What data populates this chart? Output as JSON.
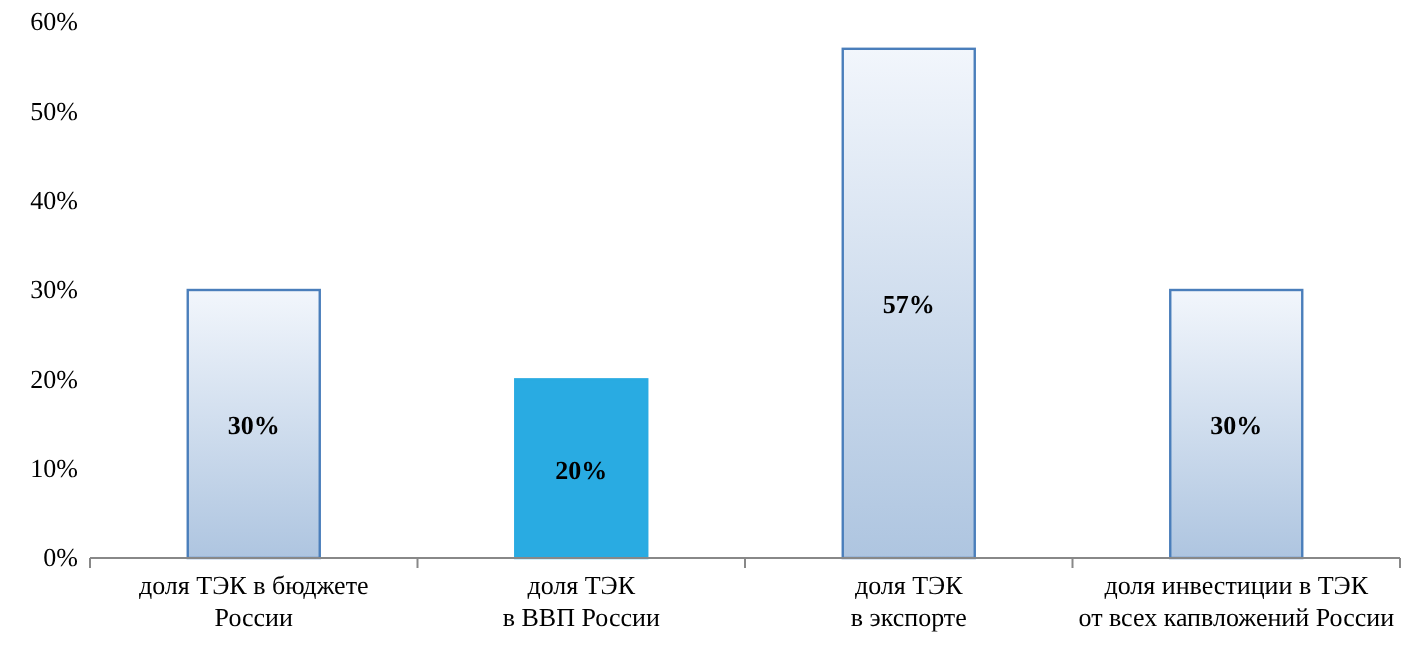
{
  "chart_data": {
    "type": "bar",
    "categories": [
      "доля ТЭК в бюджете\nРоссии",
      "доля ТЭК\nв ВВП России",
      "доля ТЭК\nв экспорте",
      "доля инвестиции в ТЭК\nот всех капвложений России"
    ],
    "values": [
      30,
      20,
      57,
      30
    ],
    "colors": [
      "#4a7ebb",
      "#29abe2",
      "#4a7ebb",
      "#4a7ebb"
    ],
    "value_labels": [
      "30%",
      "20%",
      "57%",
      "30%"
    ],
    "ylim": [
      0,
      60
    ],
    "yticks": [
      {
        "value": 0,
        "label": "0%"
      },
      {
        "value": 10,
        "label": "10%"
      },
      {
        "value": 20,
        "label": "20%"
      },
      {
        "value": 30,
        "label": "30%"
      },
      {
        "value": 40,
        "label": "40%"
      },
      {
        "value": 50,
        "label": "50%"
      },
      {
        "value": 60,
        "label": "60%"
      }
    ],
    "grid": false
  }
}
